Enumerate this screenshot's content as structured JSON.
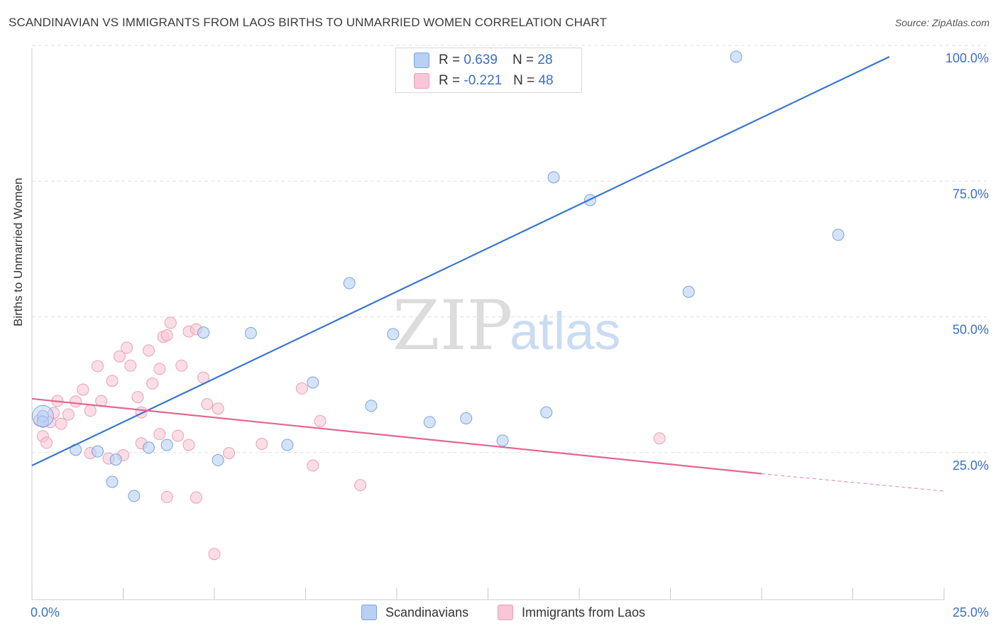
{
  "title": "SCANDINAVIAN VS IMMIGRANTS FROM LAOS BIRTHS TO UNMARRIED WOMEN CORRELATION CHART",
  "source": "Source: ZipAtlas.com",
  "watermark": {
    "zip": "ZIP",
    "atlas": "atlas"
  },
  "colors": {
    "blue": "#3a76d0",
    "blue_fill": "#b8d0f4",
    "pink": "#e36690",
    "pink_fill": "#f8c6d6",
    "axis_label": "#3a6fc4",
    "grid": "#e0e0e0"
  },
  "legend_top": {
    "rows": [
      {
        "r_label": "R = ",
        "r_value": "0.639",
        "n_label": "N = ",
        "n_value": "28"
      },
      {
        "r_label": "R = ",
        "r_value": "-0.221",
        "n_label": "N = ",
        "n_value": "48"
      }
    ]
  },
  "bottom_legend": [
    "Scandinavians",
    "Immigrants from Laos"
  ],
  "chart_data": {
    "type": "scatter",
    "title": "SCANDINAVIAN VS IMMIGRANTS FROM LAOS BIRTHS TO UNMARRIED WOMEN CORRELATION CHART",
    "xlabel": "",
    "ylabel": "Births to Unmarried Women",
    "xlim": [
      0,
      25
    ],
    "ylim": [
      0,
      100
    ],
    "x_tick_labels": [
      "0.0%",
      "25.0%"
    ],
    "y_tick_values": [
      25,
      50,
      75,
      100
    ],
    "y_tick_labels": [
      "25.0%",
      "50.0%",
      "75.0%",
      "100.0%"
    ],
    "grid": true,
    "series": [
      {
        "name": "Scandinavians",
        "r": 0.639,
        "n": 28,
        "points": [
          [
            0.3,
            33.8
          ],
          [
            0.3,
            32.8
          ],
          [
            1.2,
            27.6
          ],
          [
            1.8,
            27.3
          ],
          [
            2.3,
            25.8
          ],
          [
            2.2,
            21.7
          ],
          [
            2.8,
            19.1
          ],
          [
            3.2,
            28.0
          ],
          [
            3.7,
            28.5
          ],
          [
            4.7,
            49.2
          ],
          [
            5.1,
            25.7
          ],
          [
            6.0,
            49.1
          ],
          [
            7.0,
            28.5
          ],
          [
            7.7,
            40.0
          ],
          [
            8.7,
            58.3
          ],
          [
            9.3,
            35.7
          ],
          [
            9.9,
            48.9
          ],
          [
            10.9,
            32.7
          ],
          [
            11.9,
            33.4
          ],
          [
            12.9,
            29.3
          ],
          [
            14.1,
            34.5
          ],
          [
            14.3,
            77.8
          ],
          [
            15.3,
            73.6
          ],
          [
            18.0,
            56.7
          ],
          [
            22.1,
            67.2
          ],
          [
            11.4,
            100.0
          ],
          [
            12.3,
            100.0
          ],
          [
            19.3,
            100.0
          ]
        ],
        "trend": {
          "x": [
            0.0,
            23.5
          ],
          "y": [
            24.7,
            100.0
          ]
        }
      },
      {
        "name": "Immigrants from Laos",
        "r": -0.221,
        "n": 48,
        "points": [
          [
            0.2,
            33.0
          ],
          [
            0.3,
            30.1
          ],
          [
            0.4,
            28.9
          ],
          [
            0.5,
            32.7
          ],
          [
            0.6,
            34.4
          ],
          [
            0.7,
            36.6
          ],
          [
            0.8,
            32.4
          ],
          [
            1.0,
            34.1
          ],
          [
            1.2,
            36.5
          ],
          [
            1.4,
            38.7
          ],
          [
            1.6,
            34.8
          ],
          [
            1.8,
            43.0
          ],
          [
            1.9,
            36.6
          ],
          [
            2.2,
            40.3
          ],
          [
            2.4,
            44.8
          ],
          [
            2.6,
            46.4
          ],
          [
            2.7,
            43.1
          ],
          [
            2.9,
            37.3
          ],
          [
            3.0,
            34.5
          ],
          [
            3.2,
            45.9
          ],
          [
            3.3,
            39.8
          ],
          [
            3.5,
            42.5
          ],
          [
            3.6,
            48.4
          ],
          [
            3.7,
            48.7
          ],
          [
            3.8,
            51.0
          ],
          [
            4.1,
            43.1
          ],
          [
            4.3,
            49.4
          ],
          [
            4.5,
            49.8
          ],
          [
            4.7,
            40.9
          ],
          [
            4.8,
            36.0
          ],
          [
            5.1,
            35.2
          ],
          [
            1.6,
            27.0
          ],
          [
            2.1,
            26.0
          ],
          [
            2.5,
            26.6
          ],
          [
            3.0,
            28.8
          ],
          [
            3.5,
            30.5
          ],
          [
            4.0,
            30.2
          ],
          [
            4.3,
            28.5
          ],
          [
            5.4,
            27.0
          ],
          [
            6.3,
            28.7
          ],
          [
            7.4,
            38.9
          ],
          [
            7.9,
            32.9
          ],
          [
            9.0,
            21.1
          ],
          [
            7.7,
            24.7
          ],
          [
            3.7,
            18.9
          ],
          [
            4.5,
            18.8
          ],
          [
            5.0,
            8.4
          ],
          [
            17.2,
            29.7
          ]
        ],
        "trend": {
          "x": [
            0.0,
            20.0
          ],
          "y": [
            37.0,
            23.2
          ]
        },
        "trend_dashed": {
          "x": [
            20.0,
            25.0
          ],
          "y": [
            23.2,
            20.0
          ]
        }
      }
    ]
  }
}
